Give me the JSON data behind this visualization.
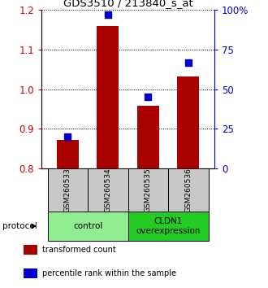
{
  "title": "GDS3510 / 213840_s_at",
  "samples": [
    "GSM260533",
    "GSM260534",
    "GSM260535",
    "GSM260536"
  ],
  "transformed_counts": [
    0.872,
    1.16,
    0.958,
    1.033
  ],
  "percentile_ranks": [
    20,
    97,
    45,
    67
  ],
  "ylim_left": [
    0.8,
    1.2
  ],
  "ylim_right": [
    0,
    100
  ],
  "yticks_left": [
    0.8,
    0.9,
    1.0,
    1.1,
    1.2
  ],
  "yticks_right": [
    0,
    25,
    50,
    75,
    100
  ],
  "ytick_labels_right": [
    "0",
    "25",
    "50",
    "75",
    "100%"
  ],
  "groups": [
    {
      "label": "control",
      "color": "#90EE90",
      "indices": [
        0,
        1
      ]
    },
    {
      "label": "CLDN1\noverexpression",
      "color": "#22CC22",
      "indices": [
        2,
        3
      ]
    }
  ],
  "bar_color": "#AA0000",
  "dot_color": "#0000CC",
  "bar_bottom": 0.8,
  "bar_width": 0.55,
  "dot_size": 35,
  "sample_box_color": "#C8C8C8",
  "protocol_label": "protocol",
  "legend_items": [
    {
      "color": "#AA0000",
      "label": "transformed count"
    },
    {
      "color": "#0000CC",
      "label": "percentile rank within the sample"
    }
  ]
}
